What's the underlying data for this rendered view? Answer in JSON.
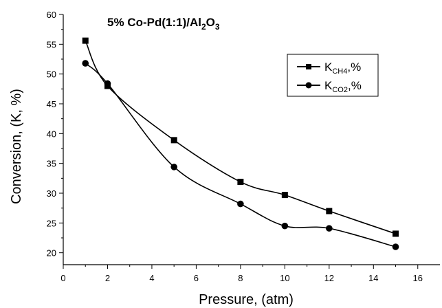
{
  "chart_data": {
    "type": "line",
    "title_parts": {
      "main": "5% Co-Pd(1:1)/Al",
      "sub": "2",
      "tail": "O",
      "sub2": "3"
    },
    "xlabel": "Pressure, (atm)",
    "ylabel": "Conversion, (K, %)",
    "xlim": [
      0,
      17
    ],
    "ylim": [
      18,
      60
    ],
    "x_ticks": [
      0,
      2,
      4,
      6,
      8,
      10,
      12,
      14,
      16
    ],
    "y_ticks": [
      20,
      25,
      30,
      35,
      40,
      45,
      50,
      55,
      60
    ],
    "grid": false,
    "legend_position": "top-right",
    "series": [
      {
        "name_main": "K",
        "name_sub": "CH4",
        "name_tail": ",%",
        "marker": "square",
        "x": [
          1,
          2,
          5,
          8,
          10,
          12,
          15
        ],
        "y": [
          55.6,
          48.0,
          38.9,
          31.9,
          29.7,
          27.0,
          23.2
        ]
      },
      {
        "name_main": "K",
        "name_sub": "CO2",
        "name_tail": ",%",
        "marker": "circle",
        "x": [
          1,
          2,
          5,
          8,
          10,
          12,
          15
        ],
        "y": [
          51.8,
          48.4,
          34.4,
          28.2,
          24.5,
          24.1,
          21.0
        ]
      }
    ]
  }
}
